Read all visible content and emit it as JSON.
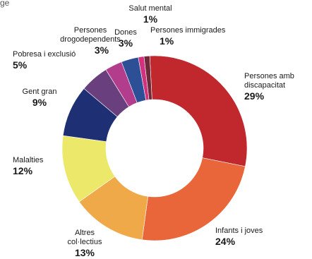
{
  "corner_text": "ge",
  "chart_data": {
    "type": "pie",
    "donut": true,
    "unit": "%",
    "slices": [
      {
        "name": "Persones amb\ndiscapacitat",
        "value": 29,
        "label": "29%",
        "color": "#c0282d"
      },
      {
        "name": "Infants i joves",
        "value": 24,
        "label": "24%",
        "color": "#e8663a"
      },
      {
        "name": "Altres\ncol·lectius",
        "value": 13,
        "label": "13%",
        "color": "#f0a948"
      },
      {
        "name": "Malalties",
        "value": 12,
        "label": "12%",
        "color": "#ece869"
      },
      {
        "name": "Gent gran",
        "value": 9,
        "label": "9%",
        "color": "#1f2f73"
      },
      {
        "name": "Pobresa i exclusió",
        "value": 5,
        "label": "5%",
        "color": "#6a3f7e"
      },
      {
        "name": "Persones\ndrogodependents",
        "value": 3,
        "label": "3%",
        "color": "#b13d8c"
      },
      {
        "name": "Dones",
        "value": 3,
        "label": "3%",
        "color": "#2d4f96"
      },
      {
        "name": "Salut mental",
        "value": 1,
        "label": "1%",
        "color": "#d2327c"
      },
      {
        "name": "Persones immigrades",
        "value": 1,
        "label": "1%",
        "color": "#6e2a3a"
      }
    ]
  }
}
